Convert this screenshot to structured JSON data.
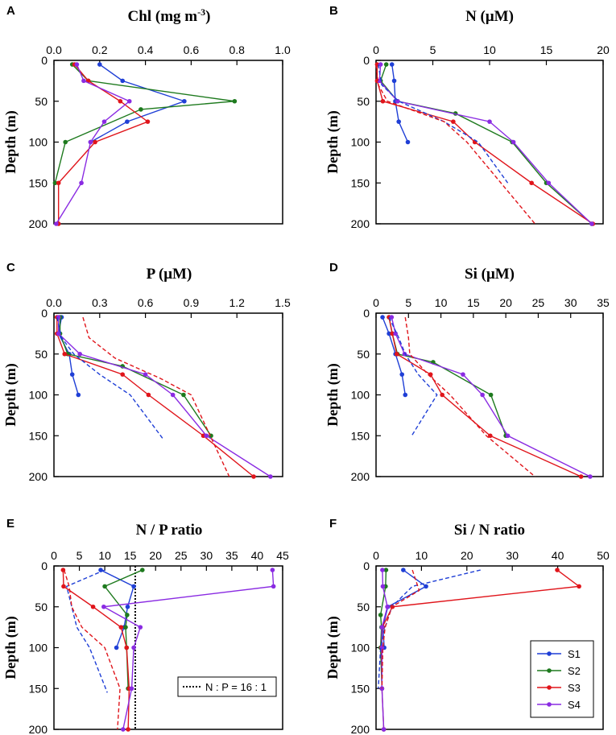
{
  "figure": {
    "series_colors": {
      "S1": "#1f3fd6",
      "S2": "#1e7a1e",
      "S3": "#e0151b",
      "S4": "#8a2be2"
    },
    "legend_entries": [
      "S1",
      "S2",
      "S3",
      "S4"
    ],
    "ratio_label": "N : P = 16 : 1"
  },
  "chart_data": [
    {
      "panel": "A",
      "type": "line",
      "title": "Chl (mg m",
      "title_sup": "-3",
      "title_end": ")",
      "xlabel_ticks": [
        "0.0",
        "0.2",
        "0.4",
        "0.6",
        "0.8",
        "1.0"
      ],
      "xlim": [
        0,
        1.0
      ],
      "ylim": [
        0,
        200
      ],
      "ylabel": "Depth (m)",
      "yticks": [
        "0",
        "50",
        "100",
        "150",
        "200"
      ],
      "series": [
        {
          "name": "S1",
          "x": [
            0.2,
            0.3,
            0.57,
            0.32,
            0.16
          ],
          "y": [
            5,
            25,
            50,
            75,
            100
          ]
        },
        {
          "name": "S2",
          "x": [
            0.08,
            0.15,
            0.79,
            0.38,
            0.05,
            0.005
          ],
          "y": [
            5,
            25,
            50,
            60,
            100,
            150
          ]
        },
        {
          "name": "S3",
          "x": [
            0.09,
            0.15,
            0.29,
            0.41,
            0.18,
            0.02,
            0.02
          ],
          "y": [
            5,
            25,
            50,
            75,
            100,
            150,
            200
          ]
        },
        {
          "name": "S4",
          "x": [
            0.1,
            0.13,
            0.33,
            0.22,
            0.16,
            0.12,
            0.01
          ],
          "y": [
            5,
            25,
            50,
            75,
            100,
            150,
            200
          ]
        }
      ]
    },
    {
      "panel": "B",
      "type": "line",
      "title": "N (μM)",
      "xlabel_ticks": [
        "0",
        "5",
        "10",
        "15",
        "20"
      ],
      "xlim": [
        0,
        20
      ],
      "ylim": [
        0,
        200
      ],
      "ylabel": "Depth (m)",
      "yticks": [
        "0",
        "50",
        "100",
        "150",
        "200"
      ],
      "series": [
        {
          "name": "S1",
          "x": [
            1.4,
            1.6,
            1.7,
            2.0,
            2.8
          ],
          "y": [
            5,
            25,
            50,
            75,
            100
          ]
        },
        {
          "name": "S2",
          "x": [
            0.9,
            0.4,
            1.9,
            7.0,
            12.0,
            15.0,
            19.0
          ],
          "y": [
            5,
            25,
            50,
            65,
            100,
            150,
            200
          ]
        },
        {
          "name": "S3",
          "x": [
            0.1,
            0.1,
            0.6,
            6.8,
            8.7,
            13.7,
            19.1
          ],
          "y": [
            5,
            25,
            50,
            75,
            100,
            150,
            200
          ]
        },
        {
          "name": "S4",
          "x": [
            0.4,
            0.3,
            1.9,
            10.0,
            12.1,
            15.2,
            19.0
          ],
          "y": [
            5,
            25,
            50,
            75,
            100,
            150,
            200
          ]
        },
        {
          "name": "S1",
          "dashed": true,
          "x": [
            0.2,
            0.5,
            2.0,
            6.0,
            9.0,
            11.6
          ],
          "y": [
            5,
            30,
            50,
            75,
            100,
            150
          ]
        },
        {
          "name": "S3",
          "dashed": true,
          "x": [
            0.0,
            0.2,
            1.0,
            6.0,
            8.0,
            11.0,
            14.0
          ],
          "y": [
            5,
            30,
            50,
            75,
            100,
            150,
            200
          ]
        }
      ]
    },
    {
      "panel": "C",
      "type": "line",
      "title": "P (μM)",
      "xlabel_ticks": [
        "0.0",
        "0.3",
        "0.6",
        "0.9",
        "1.2",
        "1.5"
      ],
      "xlim": [
        0,
        1.5
      ],
      "ylim": [
        0,
        200
      ],
      "ylabel": "Depth (m)",
      "yticks": [
        "0",
        "50",
        "100",
        "150",
        "200"
      ],
      "series": [
        {
          "name": "S1",
          "x": [
            0.05,
            0.03,
            0.1,
            0.12,
            0.16
          ],
          "y": [
            5,
            25,
            50,
            75,
            100
          ]
        },
        {
          "name": "S2",
          "x": [
            0.04,
            0.04,
            0.09,
            0.45,
            0.85,
            1.03
          ],
          "y": [
            5,
            25,
            50,
            65,
            100,
            150
          ]
        },
        {
          "name": "S3",
          "x": [
            0.02,
            0.02,
            0.07,
            0.45,
            0.62,
            0.98,
            1.31
          ],
          "y": [
            5,
            25,
            50,
            75,
            100,
            150,
            200
          ]
        },
        {
          "name": "S4",
          "x": [
            0.03,
            0.03,
            0.17,
            0.6,
            0.78,
            1.0,
            1.42
          ],
          "y": [
            5,
            25,
            50,
            75,
            100,
            150,
            200
          ]
        },
        {
          "name": "S1",
          "dashed": true,
          "x": [
            0.02,
            0.05,
            0.13,
            0.3,
            0.5,
            0.72
          ],
          "y": [
            5,
            30,
            50,
            75,
            100,
            155
          ]
        },
        {
          "name": "S3",
          "dashed": true,
          "x": [
            0.19,
            0.23,
            0.4,
            0.7,
            0.9,
            1.15
          ],
          "y": [
            5,
            30,
            55,
            80,
            100,
            200
          ]
        }
      ]
    },
    {
      "panel": "D",
      "type": "line",
      "title": "Si (μM)",
      "xlabel_ticks": [
        "0",
        "5",
        "10",
        "15",
        "20",
        "25",
        "30",
        "35"
      ],
      "xlim": [
        0,
        35
      ],
      "ylim": [
        0,
        200
      ],
      "ylabel": "Depth (m)",
      "yticks": [
        "0",
        "50",
        "100",
        "150",
        "200"
      ],
      "series": [
        {
          "name": "S1",
          "x": [
            1.0,
            2.0,
            3.0,
            4.0,
            4.5
          ],
          "y": [
            5,
            25,
            50,
            75,
            100
          ]
        },
        {
          "name": "S2",
          "x": [
            2.0,
            2.5,
            3.3,
            8.8,
            17.7,
            20.0
          ],
          "y": [
            5,
            25,
            50,
            60,
            100,
            150
          ]
        },
        {
          "name": "S3",
          "x": [
            2.0,
            2.5,
            3.2,
            8.4,
            10.2,
            17.6,
            31.6
          ],
          "y": [
            5,
            25,
            50,
            75,
            100,
            150,
            200
          ]
        },
        {
          "name": "S4",
          "x": [
            2.4,
            3.0,
            4.4,
            13.4,
            16.4,
            20.3,
            33.0
          ],
          "y": [
            5,
            25,
            50,
            75,
            100,
            150,
            200
          ]
        },
        {
          "name": "S1",
          "dashed": true,
          "x": [
            2.0,
            3.5,
            4.5,
            6.5,
            9.4,
            5.5
          ],
          "y": [
            5,
            30,
            50,
            75,
            100,
            150
          ]
        },
        {
          "name": "S3",
          "dashed": true,
          "x": [
            4.5,
            5.0,
            5.2,
            8.0,
            11.4,
            17.0,
            24.5
          ],
          "y": [
            5,
            30,
            50,
            75,
            100,
            150,
            200
          ]
        }
      ]
    },
    {
      "panel": "E",
      "type": "line",
      "title": "N / P ratio",
      "xlabel_ticks": [
        "0",
        "5",
        "10",
        "15",
        "20",
        "25",
        "30",
        "35",
        "40",
        "45"
      ],
      "xlim": [
        0,
        45
      ],
      "ylim": [
        0,
        200
      ],
      "ylabel": "Depth (m)",
      "yticks": [
        "0",
        "50",
        "100",
        "150",
        "200"
      ],
      "ref_x": 16,
      "series": [
        {
          "name": "S1",
          "x": [
            9.2,
            15.7,
            14.5,
            13.8,
            12.3
          ],
          "y": [
            5,
            25,
            50,
            75,
            100
          ]
        },
        {
          "name": "S2",
          "x": [
            17.4,
            10.0,
            14.4,
            14.1,
            14.3,
            14.6
          ],
          "y": [
            5,
            25,
            60,
            75,
            100,
            150
          ]
        },
        {
          "name": "S3",
          "x": [
            1.8,
            1.9,
            7.7,
            13.2,
            14.3,
            14.8,
            14.6
          ],
          "y": [
            5,
            25,
            50,
            75,
            100,
            150,
            200
          ]
        },
        {
          "name": "S4",
          "x": [
            43.0,
            43.2,
            9.8,
            17.0,
            15.7,
            15.3,
            13.6
          ],
          "y": [
            5,
            25,
            50,
            75,
            100,
            150,
            200
          ]
        },
        {
          "name": "S1",
          "dashed": true,
          "x": [
            10.0,
            2.5,
            3.5,
            4.5,
            7.0,
            10.5
          ],
          "y": [
            5,
            25,
            50,
            75,
            100,
            155
          ]
        },
        {
          "name": "S3",
          "dashed": true,
          "x": [
            2.0,
            3.0,
            3.5,
            5.5,
            10.0,
            13.0,
            12.5
          ],
          "y": [
            5,
            25,
            50,
            75,
            100,
            150,
            200
          ]
        }
      ]
    },
    {
      "panel": "F",
      "type": "line",
      "title": "Si / N ratio",
      "xlabel_ticks": [
        "0",
        "10",
        "20",
        "30",
        "40",
        "50"
      ],
      "xlim": [
        0,
        50
      ],
      "ylim": [
        0,
        200
      ],
      "ylabel": "Depth (m)",
      "yticks": [
        "0",
        "50",
        "100",
        "150",
        "200"
      ],
      "legend": "bottom-right",
      "series": [
        {
          "name": "S1",
          "x": [
            6.0,
            11.0,
            2.6,
            1.5,
            1.8
          ],
          "y": [
            5,
            25,
            50,
            75,
            100
          ]
        },
        {
          "name": "S2",
          "x": [
            2.2,
            2.1,
            1.0,
            1.2,
            1.0,
            1.3
          ],
          "y": [
            5,
            25,
            60,
            75,
            100,
            150
          ]
        },
        {
          "name": "S3",
          "x": [
            39.9,
            44.7,
            3.6,
            1.4,
            1.2,
            1.3,
            1.7
          ],
          "y": [
            5,
            25,
            50,
            75,
            100,
            150,
            200
          ]
        },
        {
          "name": "S4",
          "x": [
            1.4,
            1.5,
            2.5,
            1.3,
            1.3,
            1.3,
            1.7
          ],
          "y": [
            5,
            25,
            50,
            75,
            100,
            150,
            200
          ]
        },
        {
          "name": "S1",
          "dashed": true,
          "x": [
            23.0,
            8.0,
            3.5,
            2.0,
            1.0,
            0.5
          ],
          "y": [
            5,
            25,
            50,
            75,
            100,
            150
          ]
        },
        {
          "name": "S3",
          "dashed": true,
          "x": [
            8.0,
            9.5,
            3.5,
            2.0,
            1.5,
            1.3
          ],
          "y": [
            5,
            30,
            50,
            75,
            100,
            150
          ]
        }
      ]
    }
  ]
}
